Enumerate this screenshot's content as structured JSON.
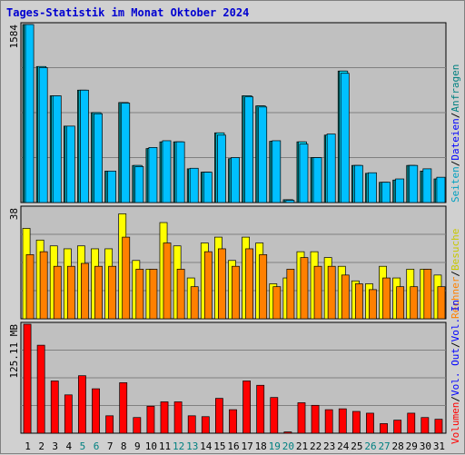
{
  "title": "Tages-Statistik im Monat Oktober 2024",
  "colors": {
    "bg": "#d0d0d0",
    "plot": "#c0c0c0",
    "grid": "#808080",
    "anfragen": "#008080",
    "dateien": "#00e0ff",
    "seiten": "#00c0ff",
    "besuche": "#ffff00",
    "rechner": "#ff8000",
    "vol": "#ff0000",
    "weekend": "#008080",
    "weekday": "#000000",
    "label_blue": "#0000ff",
    "label_red": "#ff0000",
    "label_orange": "#ff8000",
    "label_yellow": "#c8c800",
    "label_teal": "#008080",
    "label_cyan": "#00a0c0"
  },
  "right_labels": {
    "top": [
      "Anfragen",
      "Dateien",
      "Seiten"
    ],
    "mid": [
      "Besuche",
      "Rechner"
    ],
    "bot": [
      "Vol. In",
      "Vol. Out",
      "Volumen"
    ]
  },
  "chart_data": [
    {
      "type": "bar",
      "name": "top",
      "ymax_label": "1584",
      "ylim": [
        0,
        1584
      ],
      "categories": [
        "1",
        "2",
        "3",
        "4",
        "5",
        "6",
        "7",
        "8",
        "9",
        "10",
        "11",
        "12",
        "13",
        "14",
        "15",
        "16",
        "17",
        "18",
        "19",
        "20",
        "21",
        "22",
        "23",
        "24",
        "25",
        "26",
        "27",
        "28",
        "29",
        "30",
        "31"
      ],
      "series": [
        {
          "name": "Anfragen",
          "values": [
            1584,
            1210,
            950,
            680,
            1000,
            800,
            280,
            890,
            330,
            480,
            540,
            540,
            300,
            270,
            620,
            390,
            950,
            860,
            545,
            25,
            540,
            400,
            600,
            1170,
            330,
            260,
            180,
            200,
            330,
            280,
            210
          ]
        },
        {
          "name": "Dateien",
          "values": [
            1584,
            1210,
            950,
            680,
            1000,
            800,
            280,
            890,
            330,
            480,
            540,
            540,
            300,
            270,
            620,
            390,
            950,
            860,
            545,
            25,
            540,
            400,
            600,
            1170,
            330,
            260,
            180,
            200,
            330,
            280,
            210
          ]
        },
        {
          "name": "Seiten",
          "values": [
            1584,
            1200,
            950,
            680,
            1000,
            790,
            280,
            885,
            320,
            490,
            550,
            540,
            305,
            270,
            600,
            400,
            940,
            850,
            550,
            20,
            520,
            400,
            610,
            1150,
            330,
            265,
            180,
            210,
            330,
            300,
            225
          ]
        }
      ]
    },
    {
      "type": "bar",
      "name": "mid",
      "ymax_label": "38",
      "ylim": [
        0,
        38
      ],
      "categories": [
        "1",
        "2",
        "3",
        "4",
        "5",
        "6",
        "7",
        "8",
        "9",
        "10",
        "11",
        "12",
        "13",
        "14",
        "15",
        "16",
        "17",
        "18",
        "19",
        "20",
        "21",
        "22",
        "23",
        "24",
        "25",
        "26",
        "27",
        "28",
        "29",
        "30",
        "31"
      ],
      "series": [
        {
          "name": "Besuche",
          "values": [
            31,
            27,
            25,
            24,
            25,
            24,
            24,
            36,
            20,
            17,
            33,
            25,
            14,
            26,
            28,
            20,
            28,
            26,
            12,
            14,
            23,
            23,
            21,
            18,
            13,
            12,
            18,
            14,
            17,
            17,
            15
          ]
        },
        {
          "name": "Rechner",
          "values": [
            22,
            23,
            18,
            18,
            19,
            18,
            18,
            28,
            17,
            17,
            26,
            17,
            11,
            23,
            24,
            18,
            24,
            22,
            11,
            17,
            21,
            18,
            18,
            15,
            12,
            10,
            14,
            11,
            11,
            17,
            11
          ]
        }
      ]
    },
    {
      "type": "bar",
      "name": "bot",
      "ymax_label": "125.11 MB",
      "ylim": [
        0,
        125.11
      ],
      "categories": [
        "1",
        "2",
        "3",
        "4",
        "5",
        "6",
        "7",
        "8",
        "9",
        "10",
        "11",
        "12",
        "13",
        "14",
        "15",
        "16",
        "17",
        "18",
        "19",
        "20",
        "21",
        "22",
        "23",
        "24",
        "25",
        "26",
        "27",
        "28",
        "29",
        "30",
        "31"
      ],
      "series": [
        {
          "name": "Volumen",
          "values": [
            125.11,
            101,
            60,
            44,
            66,
            51,
            20,
            58,
            18,
            31,
            36,
            36,
            20,
            19,
            40,
            27,
            60,
            55,
            41,
            1.5,
            35,
            32,
            27,
            28,
            25,
            23,
            11,
            15,
            23,
            18,
            16
          ]
        }
      ]
    }
  ],
  "x_labels": [
    {
      "t": "1",
      "w": false
    },
    {
      "t": "2",
      "w": false
    },
    {
      "t": "3",
      "w": false
    },
    {
      "t": "4",
      "w": false
    },
    {
      "t": "5",
      "w": true
    },
    {
      "t": "6",
      "w": true
    },
    {
      "t": "7",
      "w": false
    },
    {
      "t": "8",
      "w": false
    },
    {
      "t": "9",
      "w": false
    },
    {
      "t": "10",
      "w": false
    },
    {
      "t": "11",
      "w": false
    },
    {
      "t": "12",
      "w": true
    },
    {
      "t": "13",
      "w": true
    },
    {
      "t": "14",
      "w": false
    },
    {
      "t": "15",
      "w": false
    },
    {
      "t": "16",
      "w": false
    },
    {
      "t": "17",
      "w": false
    },
    {
      "t": "18",
      "w": false
    },
    {
      "t": "19",
      "w": true
    },
    {
      "t": "20",
      "w": true
    },
    {
      "t": "21",
      "w": false
    },
    {
      "t": "22",
      "w": false
    },
    {
      "t": "23",
      "w": false
    },
    {
      "t": "24",
      "w": false
    },
    {
      "t": "25",
      "w": false
    },
    {
      "t": "26",
      "w": true
    },
    {
      "t": "27",
      "w": true
    },
    {
      "t": "28",
      "w": false
    },
    {
      "t": "29",
      "w": false
    },
    {
      "t": "30",
      "w": false
    },
    {
      "t": "31",
      "w": false
    }
  ]
}
